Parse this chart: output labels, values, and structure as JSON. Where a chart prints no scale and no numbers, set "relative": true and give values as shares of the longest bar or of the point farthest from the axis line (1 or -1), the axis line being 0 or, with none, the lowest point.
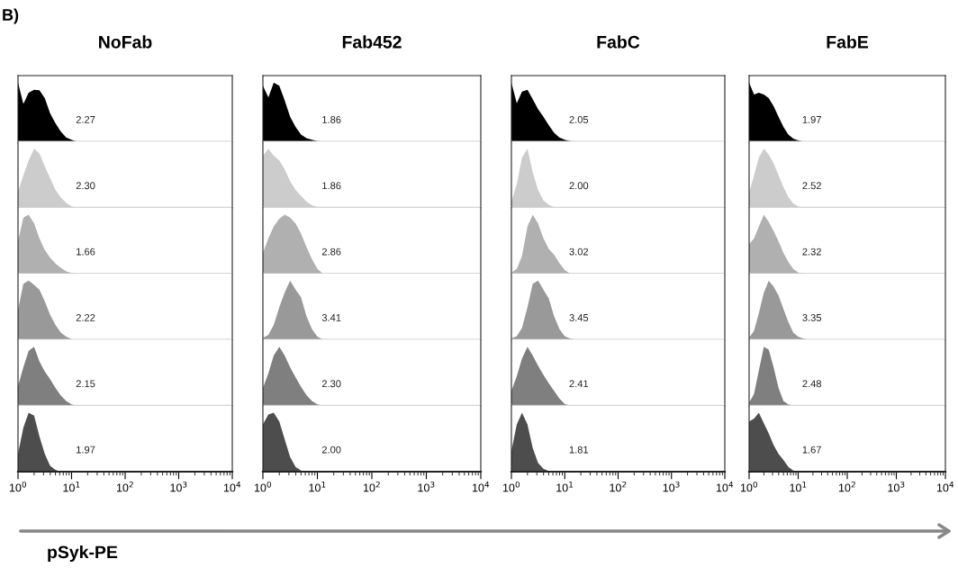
{
  "chart_data": [
    {
      "type": "area",
      "relative": true,
      "title": "NoFab",
      "x": [
        1,
        1.26,
        1.58,
        2,
        2.51,
        3.16,
        3.98,
        5.01,
        6.31,
        7.94,
        10,
        12.6,
        15.8
      ],
      "values": [
        1,
        0.64,
        0.83,
        0.88,
        0.87,
        0.74,
        0.48,
        0.31,
        0.17,
        0.07,
        0.03,
        0,
        0
      ],
      "color": "#000000",
      "xlim": [
        1,
        10000
      ],
      "log": "x",
      "tick_labels": false,
      "annotations": [
        "2.27",
        "B)"
      ]
    },
    {
      "type": "area",
      "relative": true,
      "x": [
        1,
        1.26,
        1.58,
        2,
        2.51,
        3.16,
        3.98,
        5.01,
        6.31,
        7.94,
        10,
        12.6,
        15.8
      ],
      "values": [
        0.27,
        0.55,
        0.8,
        1,
        0.92,
        0.7,
        0.5,
        0.3,
        0.17,
        0.08,
        0.02,
        0,
        0
      ],
      "color": "#cccccc",
      "xlim": [
        1,
        10000
      ],
      "log": "x",
      "tick_labels": false,
      "annotations": [
        "2.30"
      ]
    },
    {
      "type": "area",
      "relative": true,
      "x": [
        1,
        1.26,
        1.58,
        2,
        2.51,
        3.16,
        3.98,
        5.01,
        6.31,
        7.94,
        10,
        12.6,
        15.8
      ],
      "values": [
        0.55,
        0.95,
        1,
        0.85,
        0.6,
        0.4,
        0.27,
        0.17,
        0.1,
        0.04,
        0.01,
        0,
        0
      ],
      "color": "#b0b0b0",
      "xlim": [
        1,
        10000
      ],
      "log": "x",
      "tick_labels": false,
      "annotations": [
        "1.66"
      ]
    },
    {
      "type": "area",
      "relative": true,
      "x": [
        1,
        1.26,
        1.58,
        2,
        2.51,
        3.16,
        3.98,
        5.01,
        6.31,
        7.94,
        10,
        12.6,
        15.8
      ],
      "values": [
        0.5,
        0.95,
        1,
        0.93,
        0.85,
        0.65,
        0.42,
        0.25,
        0.12,
        0.05,
        0.01,
        0,
        0
      ],
      "color": "#999999",
      "xlim": [
        1,
        10000
      ],
      "log": "x",
      "tick_labels": false,
      "annotations": [
        "2.22"
      ]
    },
    {
      "type": "area",
      "relative": true,
      "x": [
        1,
        1.26,
        1.58,
        2,
        2.51,
        3.16,
        3.98,
        5.01,
        6.31,
        7.94,
        10,
        12.6,
        15.8
      ],
      "values": [
        0.33,
        0.65,
        0.93,
        1,
        0.75,
        0.58,
        0.45,
        0.3,
        0.17,
        0.08,
        0.02,
        0,
        0
      ],
      "color": "#7f7f7f",
      "xlim": [
        1,
        10000
      ],
      "log": "x",
      "tick_labels": false,
      "annotations": [
        "2.15"
      ]
    },
    {
      "type": "area",
      "relative": true,
      "xlabel": "pSyk-PE",
      "x": [
        1,
        1.26,
        1.58,
        2,
        2.51,
        3.16,
        3.98,
        5.01,
        6.31,
        7.94,
        10,
        12.6,
        15.8
      ],
      "values": [
        0.3,
        0.75,
        1,
        0.95,
        0.6,
        0.3,
        0.1,
        0.03,
        0,
        0,
        0,
        0,
        0
      ],
      "color": "#4d4d4d",
      "xlim": [
        1,
        10000
      ],
      "log": "x",
      "tick_labels": "x",
      "xticks": [
        {
          "value": 1,
          "label": "10$^{0}$"
        },
        {
          "value": 10,
          "label": "10$^{1}$"
        },
        {
          "value": 100,
          "label": "10$^{2}$"
        },
        {
          "value": 1000,
          "label": "10$^{3}$"
        },
        {
          "value": 10000,
          "label": "10$^{4}$"
        }
      ],
      "annotations": [
        "1.97"
      ]
    },
    {
      "type": "area",
      "relative": true,
      "title": "Fab452",
      "x": [
        1,
        1.26,
        1.58,
        2,
        2.51,
        3.16,
        3.98,
        5.01,
        6.31,
        7.94,
        10,
        12.6,
        15.8
      ],
      "values": [
        0.95,
        0.75,
        1,
        0.95,
        0.7,
        0.42,
        0.25,
        0.12,
        0.06,
        0.03,
        0.01,
        0,
        0
      ],
      "color": "#000000",
      "xlim": [
        1,
        10000
      ],
      "log": "x",
      "tick_labels": false,
      "annotations": [
        "1.86"
      ]
    },
    {
      "type": "area",
      "relative": true,
      "x": [
        1,
        1.26,
        1.58,
        2,
        2.51,
        3.16,
        3.98,
        5.01,
        6.31,
        7.94,
        10,
        12.6,
        15.8
      ],
      "values": [
        0.88,
        1,
        0.88,
        0.8,
        0.65,
        0.45,
        0.3,
        0.2,
        0.1,
        0.04,
        0.01,
        0,
        0
      ],
      "color": "#cccccc",
      "xlim": [
        1,
        10000
      ],
      "log": "x",
      "tick_labels": false,
      "annotations": [
        "1.86"
      ]
    },
    {
      "type": "area",
      "relative": true,
      "x": [
        1,
        1.26,
        1.58,
        2,
        2.51,
        3.16,
        3.98,
        5.01,
        6.31,
        7.94,
        10,
        12.6,
        15.8
      ],
      "values": [
        0.35,
        0.6,
        0.8,
        0.93,
        1,
        0.95,
        0.85,
        0.68,
        0.45,
        0.25,
        0.08,
        0,
        0
      ],
      "color": "#b0b0b0",
      "xlim": [
        1,
        10000
      ],
      "log": "x",
      "tick_labels": false,
      "annotations": [
        "2.86"
      ]
    },
    {
      "type": "area",
      "relative": true,
      "x": [
        1,
        1.26,
        1.58,
        2,
        2.51,
        3.16,
        3.98,
        5.01,
        6.31,
        7.94,
        10,
        12.6,
        15.8
      ],
      "values": [
        0.03,
        0.08,
        0.25,
        0.55,
        0.8,
        1,
        0.85,
        0.72,
        0.4,
        0.18,
        0.05,
        0,
        0
      ],
      "color": "#999999",
      "xlim": [
        1,
        10000
      ],
      "log": "x",
      "tick_labels": false,
      "annotations": [
        "3.41"
      ]
    },
    {
      "type": "area",
      "relative": true,
      "x": [
        1,
        1.26,
        1.58,
        2,
        2.51,
        3.16,
        3.98,
        5.01,
        6.31,
        7.94,
        10,
        12.6,
        15.8
      ],
      "values": [
        0.3,
        0.55,
        0.85,
        1,
        0.85,
        0.65,
        0.48,
        0.32,
        0.18,
        0.08,
        0.02,
        0,
        0
      ],
      "color": "#7f7f7f",
      "xlim": [
        1,
        10000
      ],
      "log": "x",
      "tick_labels": false,
      "annotations": [
        "2.30"
      ]
    },
    {
      "type": "area",
      "relative": true,
      "x": [
        1,
        1.26,
        1.58,
        2,
        2.51,
        3.16,
        3.98,
        5.01,
        6.31,
        7.94,
        10,
        12.6,
        15.8
      ],
      "values": [
        0.8,
        0.97,
        1,
        0.85,
        0.55,
        0.25,
        0.08,
        0.02,
        0,
        0,
        0,
        0,
        0
      ],
      "color": "#4d4d4d",
      "xlim": [
        1,
        10000
      ],
      "log": "x",
      "tick_labels": "x",
      "xticks": [
        {
          "value": 1,
          "label": "10$^{0}$"
        },
        {
          "value": 10,
          "label": "10$^{1}$"
        },
        {
          "value": 100,
          "label": "10$^{2}$"
        },
        {
          "value": 1000,
          "label": "10$^{3}$"
        },
        {
          "value": 10000,
          "label": "10$^{4}$"
        }
      ],
      "annotations": [
        "2.00"
      ]
    },
    {
      "type": "area",
      "relative": true,
      "title": "FabC",
      "x": [
        1,
        1.26,
        1.58,
        2,
        2.51,
        3.16,
        3.98,
        5.01,
        6.31,
        7.94,
        10,
        12.6,
        15.8
      ],
      "values": [
        1,
        0.65,
        0.85,
        0.88,
        0.72,
        0.55,
        0.42,
        0.28,
        0.15,
        0.07,
        0.03,
        0.01,
        0
      ],
      "color": "#000000",
      "xlim": [
        1,
        10000
      ],
      "log": "x",
      "tick_labels": false,
      "annotations": [
        "2.05"
      ]
    },
    {
      "type": "area",
      "relative": true,
      "x": [
        1,
        1.26,
        1.58,
        2,
        2.51,
        3.16,
        3.98,
        5.01,
        6.31,
        7.94,
        10,
        12.6,
        15.8
      ],
      "values": [
        0.1,
        0.4,
        0.85,
        1,
        0.6,
        0.3,
        0.12,
        0.05,
        0.01,
        0,
        0,
        0,
        0
      ],
      "color": "#cccccc",
      "xlim": [
        1,
        10000
      ],
      "log": "x",
      "tick_labels": false,
      "annotations": [
        "2.00"
      ]
    },
    {
      "type": "area",
      "relative": true,
      "x": [
        1,
        1.26,
        1.58,
        2,
        2.51,
        3.16,
        3.98,
        5.01,
        6.31,
        7.94,
        10,
        12.6,
        15.8
      ],
      "values": [
        0.02,
        0.08,
        0.3,
        0.8,
        1,
        0.85,
        0.6,
        0.42,
        0.32,
        0.18,
        0.06,
        0,
        0
      ],
      "color": "#b0b0b0",
      "xlim": [
        1,
        10000
      ],
      "log": "x",
      "tick_labels": false,
      "annotations": [
        "3.02"
      ]
    },
    {
      "type": "area",
      "relative": true,
      "x": [
        1,
        1.26,
        1.58,
        2,
        2.51,
        3.16,
        3.98,
        5.01,
        6.31,
        7.94,
        10,
        12.6,
        15.8
      ],
      "values": [
        0.02,
        0.06,
        0.2,
        0.55,
        0.95,
        1,
        0.85,
        0.7,
        0.4,
        0.18,
        0.06,
        0.02,
        0
      ],
      "color": "#999999",
      "xlim": [
        1,
        10000
      ],
      "log": "x",
      "tick_labels": false,
      "annotations": [
        "3.45"
      ]
    },
    {
      "type": "area",
      "relative": true,
      "x": [
        1,
        1.26,
        1.58,
        2,
        2.51,
        3.16,
        3.98,
        5.01,
        6.31,
        7.94,
        10,
        12.6,
        15.8
      ],
      "values": [
        0.25,
        0.5,
        0.8,
        1,
        0.85,
        0.68,
        0.52,
        0.38,
        0.25,
        0.12,
        0.03,
        0,
        0
      ],
      "color": "#7f7f7f",
      "xlim": [
        1,
        10000
      ],
      "log": "x",
      "tick_labels": false,
      "annotations": [
        "2.41"
      ]
    },
    {
      "type": "area",
      "relative": true,
      "x": [
        1,
        1.26,
        1.58,
        2,
        2.51,
        3.16,
        3.98,
        5.01,
        6.31,
        7.94,
        10,
        12.6,
        15.8
      ],
      "values": [
        0.35,
        0.8,
        1,
        0.8,
        0.4,
        0.15,
        0.05,
        0.01,
        0,
        0,
        0,
        0,
        0
      ],
      "color": "#4d4d4d",
      "xlim": [
        1,
        10000
      ],
      "log": "x",
      "tick_labels": "x",
      "xticks": [
        {
          "value": 1,
          "label": "10$^{0}$"
        },
        {
          "value": 10,
          "label": "10$^{1}$"
        },
        {
          "value": 100,
          "label": "10$^{2}$"
        },
        {
          "value": 1000,
          "label": "10$^{3}$"
        },
        {
          "value": 10000,
          "label": "10$^{4}$"
        }
      ],
      "annotations": [
        "1.81"
      ]
    },
    {
      "type": "area",
      "relative": true,
      "title": "FabE",
      "x": [
        1,
        1.26,
        1.58,
        2,
        2.51,
        3.16,
        3.98,
        5.01,
        6.31,
        7.94,
        10,
        12.6,
        15.8
      ],
      "values": [
        1,
        0.8,
        0.83,
        0.8,
        0.74,
        0.6,
        0.42,
        0.25,
        0.12,
        0.05,
        0.02,
        0,
        0
      ],
      "color": "#000000",
      "xlim": [
        1,
        10000
      ],
      "log": "x",
      "tick_labels": false,
      "annotations": [
        "1.97"
      ]
    },
    {
      "type": "area",
      "relative": true,
      "x": [
        1,
        1.26,
        1.58,
        2,
        2.51,
        3.16,
        3.98,
        5.01,
        6.31,
        7.94,
        10,
        12.6,
        15.8
      ],
      "values": [
        0.25,
        0.55,
        0.85,
        1,
        0.9,
        0.75,
        0.55,
        0.35,
        0.18,
        0.07,
        0.02,
        0,
        0
      ],
      "color": "#cccccc",
      "xlim": [
        1,
        10000
      ],
      "log": "x",
      "tick_labels": false,
      "annotations": [
        "2.52"
      ]
    },
    {
      "type": "area",
      "relative": true,
      "x": [
        1,
        1.26,
        1.58,
        2,
        2.51,
        3.16,
        3.98,
        5.01,
        6.31,
        7.94,
        10,
        12.6,
        15.8
      ],
      "values": [
        0.5,
        0.6,
        0.8,
        1,
        0.88,
        0.72,
        0.55,
        0.35,
        0.2,
        0.08,
        0.02,
        0,
        0
      ],
      "color": "#b0b0b0",
      "xlim": [
        1,
        10000
      ],
      "log": "x",
      "tick_labels": false,
      "annotations": [
        "2.32"
      ]
    },
    {
      "type": "area",
      "relative": true,
      "x": [
        1,
        1.26,
        1.58,
        2,
        2.51,
        3.16,
        3.98,
        5.01,
        6.31,
        7.94,
        10,
        12.6,
        15.8
      ],
      "values": [
        0.03,
        0.15,
        0.45,
        0.8,
        1,
        0.9,
        0.75,
        0.52,
        0.3,
        0.12,
        0.05,
        0.02,
        0
      ],
      "color": "#999999",
      "xlim": [
        1,
        10000
      ],
      "log": "x",
      "tick_labels": false,
      "annotations": [
        "3.35"
      ]
    },
    {
      "type": "area",
      "relative": true,
      "x": [
        1,
        1.26,
        1.58,
        2,
        2.51,
        3.16,
        3.98,
        5.01,
        6.31,
        7.94,
        10,
        12.6,
        15.8
      ],
      "values": [
        0.05,
        0.2,
        0.6,
        1,
        0.95,
        0.65,
        0.3,
        0.08,
        0.02,
        0,
        0,
        0,
        0
      ],
      "color": "#7f7f7f",
      "xlim": [
        1,
        10000
      ],
      "log": "x",
      "tick_labels": false,
      "annotations": [
        "2.48"
      ]
    },
    {
      "type": "area",
      "relative": true,
      "x": [
        1,
        1.26,
        1.58,
        2,
        2.51,
        3.16,
        3.98,
        5.01,
        6.31,
        7.94,
        10,
        12.6,
        15.8
      ],
      "values": [
        0.85,
        0.9,
        1,
        0.82,
        0.65,
        0.45,
        0.3,
        0.2,
        0.08,
        0.02,
        0,
        0,
        0
      ],
      "color": "#4d4d4d",
      "xlim": [
        1,
        10000
      ],
      "log": "x",
      "tick_labels": "x",
      "xticks": [
        {
          "value": 1,
          "label": "10$^{0}$"
        },
        {
          "value": 10,
          "label": "10$^{1}$"
        },
        {
          "value": 100,
          "label": "10$^{2}$"
        },
        {
          "value": 1000,
          "label": "10$^{3}$"
        },
        {
          "value": 10000,
          "label": "10$^{4}$"
        }
      ],
      "annotations": [
        "1.67"
      ]
    }
  ]
}
